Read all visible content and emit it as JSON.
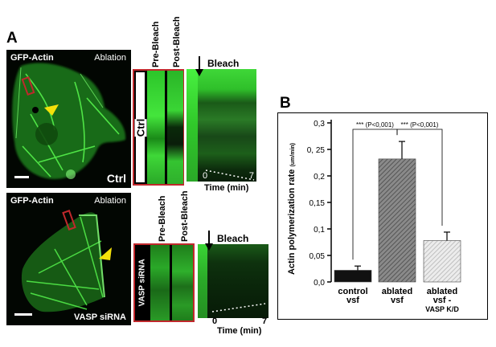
{
  "panel_a": {
    "letter": "A",
    "top_row": {
      "image_label_left": "GFP-Actin",
      "image_label_right": "Ablation",
      "condition": "Ctrl",
      "col_pre": "Pre-Bleach",
      "col_post": "Post-Bleach",
      "kymo_tag": "Ctrl",
      "bleach": "Bleach",
      "t_start": "0",
      "t_end": "7",
      "time_axis": "Time (min)"
    },
    "bottom_row": {
      "image_label_left": "GFP-Actin",
      "image_label_right": "Ablation",
      "condition": "VASP siRNA",
      "col_pre": "Pre-Bleach",
      "col_post": "Post-Bleach",
      "kymo_tag": "VASP siRNA",
      "bleach": "Bleach",
      "t_start": "0",
      "t_end": "7",
      "time_axis": "Time (min)"
    },
    "colors": {
      "gfp": "#36d62f",
      "roi": "#c0282c",
      "arrowhead": "#f3e10a"
    }
  },
  "panel_b": {
    "letter": "B"
  },
  "chart_data": {
    "type": "bar",
    "categories": [
      "control\nvsf",
      "ablated\nvsf",
      "ablated\nvsf -\nVASP K/D"
    ],
    "category_lines": [
      [
        "control",
        "vsf"
      ],
      [
        "ablated",
        "vsf"
      ],
      [
        "ablated",
        "vsf -",
        "VASP K/D"
      ]
    ],
    "values": [
      0.022,
      0.232,
      0.078
    ],
    "errors": [
      0.008,
      0.033,
      0.016
    ],
    "ylim": [
      0,
      0.3
    ],
    "yticks": [
      0,
      0.05,
      0.1,
      0.15,
      0.2,
      0.25,
      0.3
    ],
    "ytick_labels": [
      "0,0",
      "0,05",
      "0,1",
      "0,15",
      "0,2",
      "0, 25",
      "0,3"
    ],
    "ylabel": "Actin polymerization rate",
    "ylabel_unit": "(um/min)",
    "significance": [
      {
        "from": 0,
        "to": 1,
        "label": "*** (P<0,001)"
      },
      {
        "from": 1,
        "to": 2,
        "label": "*** (P<0,001)"
      }
    ],
    "bar_styles": [
      {
        "fill": "#111111",
        "pattern": "solid"
      },
      {
        "fill": "#7a7a7a",
        "pattern": "hatch-dark"
      },
      {
        "fill": "#dcdcdc",
        "pattern": "hatch-light"
      }
    ]
  }
}
